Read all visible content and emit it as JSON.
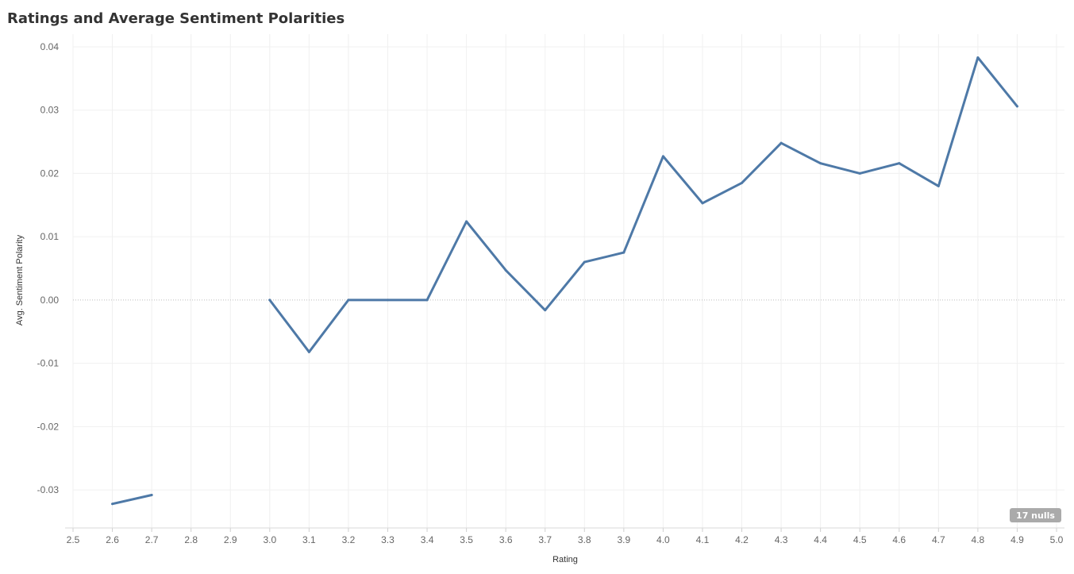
{
  "chart_data": {
    "type": "line",
    "title": "Ratings and Average Sentiment Polarities",
    "xlabel": "Rating",
    "ylabel": "Avg. Sentiment Polarity",
    "xlim": [
      2.5,
      5.0
    ],
    "ylim": [
      -0.036,
      0.042
    ],
    "x_ticks": [
      "2.5",
      "2.6",
      "2.7",
      "2.8",
      "2.9",
      "3.0",
      "3.1",
      "3.2",
      "3.3",
      "3.4",
      "3.5",
      "3.6",
      "3.7",
      "3.8",
      "3.9",
      "4.0",
      "4.1",
      "4.2",
      "4.3",
      "4.4",
      "4.5",
      "4.6",
      "4.7",
      "4.8",
      "4.9",
      "5.0"
    ],
    "y_ticks": [
      "0.04",
      "0.03",
      "0.02",
      "0.01",
      "0.00",
      "-0.01",
      "-0.02",
      "-0.03"
    ],
    "grid": true,
    "series": [
      {
        "color": "#4e79a7",
        "segments": [
          [
            {
              "x": 2.6,
              "y": -0.0322
            },
            {
              "x": 2.7,
              "y": -0.0308
            }
          ],
          [
            {
              "x": 3.0,
              "y": 0.0
            },
            {
              "x": 3.1,
              "y": -0.0082
            },
            {
              "x": 3.2,
              "y": 0.0
            },
            {
              "x": 3.3,
              "y": 0.0
            },
            {
              "x": 3.4,
              "y": 0.0
            },
            {
              "x": 3.5,
              "y": 0.0124
            },
            {
              "x": 3.6,
              "y": 0.0047
            },
            {
              "x": 3.7,
              "y": -0.0016
            },
            {
              "x": 3.8,
              "y": 0.006
            },
            {
              "x": 3.9,
              "y": 0.0075
            },
            {
              "x": 4.0,
              "y": 0.0227
            },
            {
              "x": 4.1,
              "y": 0.0153
            },
            {
              "x": 4.2,
              "y": 0.0185
            },
            {
              "x": 4.3,
              "y": 0.0248
            },
            {
              "x": 4.4,
              "y": 0.0216
            },
            {
              "x": 4.5,
              "y": 0.02
            },
            {
              "x": 4.6,
              "y": 0.0216
            },
            {
              "x": 4.7,
              "y": 0.018
            },
            {
              "x": 4.8,
              "y": 0.0383
            },
            {
              "x": 4.9,
              "y": 0.0306
            }
          ]
        ]
      }
    ],
    "nulls_indicator": "17 nulls"
  }
}
